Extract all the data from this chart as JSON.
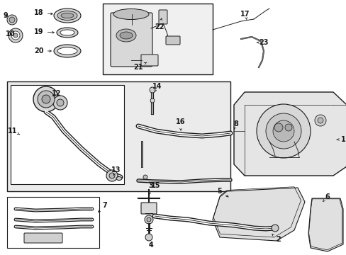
{
  "bg_color": "#ffffff",
  "line_color": "#1a1a1a",
  "box_bg_light": "#e8e8e8",
  "label_fontsize": 7,
  "arrow_lw": 0.6,
  "part_line_lw": 1.0
}
